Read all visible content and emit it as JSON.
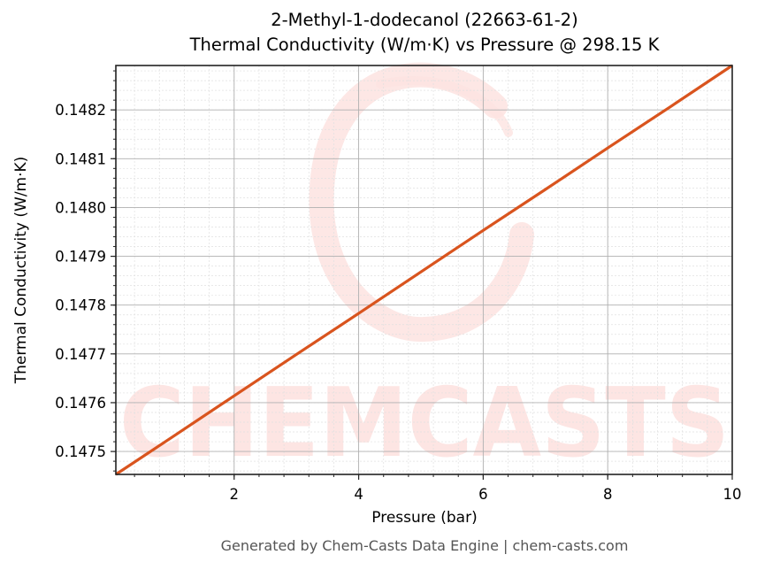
{
  "header": {
    "title_line1": "2-Methyl-1-dodecanol (22663-61-2)",
    "title_line2": "Thermal Conductivity (W/m·K) vs Pressure @ 298.15 K"
  },
  "axes": {
    "xlabel": "Pressure (bar)",
    "ylabel": "Thermal Conductivity (W/m·K)"
  },
  "footer": {
    "text": "Generated by Chem-Casts Data Engine | chem-casts.com"
  },
  "watermark": {
    "text": "CHEMCASTS",
    "color": "#fde3e1"
  },
  "colors": {
    "line": "#d9541e",
    "grid_major": "#b0b0b0",
    "grid_minor": "#e0e0e0",
    "axis": "#222222"
  },
  "chart_data": {
    "type": "line",
    "title": "2-Methyl-1-dodecanol (22663-61-2)\nThermal Conductivity (W/m·K) vs Pressure @ 298.15 K",
    "xlabel": "Pressure (bar)",
    "ylabel": "Thermal Conductivity (W/m·K)",
    "xlim": [
      0.1,
      10
    ],
    "ylim": [
      0.147453,
      0.148291
    ],
    "x_ticks": [
      2,
      4,
      6,
      8,
      10
    ],
    "x_tick_labels": [
      "2",
      "4",
      "6",
      "8",
      "10"
    ],
    "y_ticks": [
      0.1475,
      0.1476,
      0.1477,
      0.1478,
      0.1479,
      0.148,
      0.1481,
      0.1482
    ],
    "y_tick_labels": [
      "0.1475",
      "0.1476",
      "0.1477",
      "0.1478",
      "0.1479",
      "0.1480",
      "0.1481",
      "0.1482"
    ],
    "grid": true,
    "minor_grid": true,
    "legend": null,
    "series": [
      {
        "name": "Thermal Conductivity",
        "color": "#d9541e",
        "x": [
          0.1,
          1,
          2,
          3,
          4,
          5,
          6,
          7,
          8,
          9,
          10
        ],
        "values": [
          0.147453,
          0.147529,
          0.147614,
          0.147699,
          0.147783,
          0.147868,
          0.147953,
          0.148037,
          0.148122,
          0.148206,
          0.148291
        ]
      }
    ],
    "annotations": [
      "Generated by Chem-Casts Data Engine | chem-casts.com"
    ]
  }
}
